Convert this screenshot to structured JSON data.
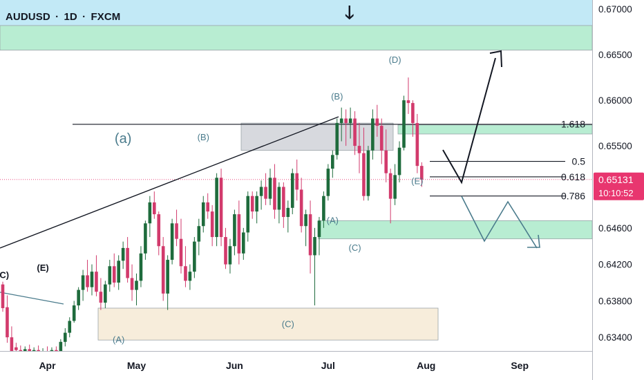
{
  "header": {
    "symbol": "AUDUSD",
    "timeframe": "1D",
    "exchange": "FXCM",
    "separator": "·"
  },
  "colors": {
    "bull": "#1e6b3c",
    "bear": "#d23a6c",
    "top_band": "#bfe8f5",
    "green_zone": "#b4ecd0",
    "gray_zone": "#c9ccd3",
    "beige_zone": "#f7ecd9",
    "wave_label": "#4a7b8c",
    "price_tag": "#e8366f",
    "axis_text": "#131722"
  },
  "chart_data": {
    "type": "candlestick",
    "title": "AUDUSD · 1D · FXCM",
    "xlabel": "",
    "ylabel": "",
    "ylim": [
      0.6325,
      0.671
    ],
    "y_ticks": [
      0.67,
      0.665,
      0.66,
      0.655,
      0.65131,
      0.646,
      0.642,
      0.638,
      0.634
    ],
    "y_tick_labels": [
      "0.67000",
      "0.66500",
      "0.66000",
      "0.65500",
      "0.64600",
      "0.64200",
      "0.63800",
      "0.63400"
    ],
    "x_tick_labels": [
      "Apr",
      "May",
      "Jun",
      "Jul",
      "Aug",
      "Sep"
    ],
    "x_tick_index": [
      10,
      30,
      52,
      73,
      95,
      116
    ],
    "last_price": "0.65131",
    "countdown": "10:10:52",
    "candles": [
      [
        0.6398,
        0.6401,
        0.6368,
        0.6372
      ],
      [
        0.6373,
        0.6386,
        0.6334,
        0.634
      ],
      [
        0.634,
        0.6352,
        0.6317,
        0.6322
      ],
      [
        0.6329,
        0.6334,
        0.6318,
        0.6326
      ],
      [
        0.6326,
        0.6331,
        0.6318,
        0.6324
      ],
      [
        0.6325,
        0.633,
        0.6318,
        0.6327
      ],
      [
        0.6327,
        0.6332,
        0.6318,
        0.6324
      ],
      [
        0.6324,
        0.6329,
        0.6318,
        0.6326
      ],
      [
        0.6326,
        0.6331,
        0.6318,
        0.6322
      ],
      [
        0.6322,
        0.6328,
        0.6318,
        0.6325
      ],
      [
        0.6325,
        0.633,
        0.6318,
        0.6323
      ],
      [
        0.6323,
        0.6329,
        0.6318,
        0.6326
      ],
      [
        0.6326,
        0.633,
        0.6318,
        0.6324
      ],
      [
        0.6325,
        0.6338,
        0.6318,
        0.6335
      ],
      [
        0.6335,
        0.635,
        0.633,
        0.6345
      ],
      [
        0.6345,
        0.6362,
        0.634,
        0.6358
      ],
      [
        0.6358,
        0.638,
        0.6356,
        0.6375
      ],
      [
        0.6375,
        0.6395,
        0.637,
        0.6392
      ],
      [
        0.6392,
        0.6414,
        0.638,
        0.6408
      ],
      [
        0.6408,
        0.6425,
        0.639,
        0.6395
      ],
      [
        0.6395,
        0.642,
        0.6386,
        0.6412
      ],
      [
        0.6412,
        0.643,
        0.6385,
        0.639
      ],
      [
        0.639,
        0.6405,
        0.637,
        0.6378
      ],
      [
        0.6378,
        0.6402,
        0.6372,
        0.6398
      ],
      [
        0.6398,
        0.6425,
        0.639,
        0.6418
      ],
      [
        0.6418,
        0.6432,
        0.6395,
        0.64
      ],
      [
        0.64,
        0.643,
        0.6392,
        0.6424
      ],
      [
        0.6424,
        0.6445,
        0.6415,
        0.6438
      ],
      [
        0.6438,
        0.645,
        0.64,
        0.6405
      ],
      [
        0.6405,
        0.642,
        0.638,
        0.6392
      ],
      [
        0.6392,
        0.641,
        0.6375,
        0.6402
      ],
      [
        0.6402,
        0.644,
        0.6395,
        0.6432
      ],
      [
        0.6432,
        0.6468,
        0.6425,
        0.6465
      ],
      [
        0.6465,
        0.6495,
        0.645,
        0.6488
      ],
      [
        0.6488,
        0.65,
        0.647,
        0.6475
      ],
      [
        0.6475,
        0.6478,
        0.643,
        0.644
      ],
      [
        0.644,
        0.645,
        0.638,
        0.6388
      ],
      [
        0.6388,
        0.643,
        0.637,
        0.6425
      ],
      [
        0.6425,
        0.647,
        0.642,
        0.6465
      ],
      [
        0.6465,
        0.648,
        0.644,
        0.6448
      ],
      [
        0.6448,
        0.647,
        0.641,
        0.6418
      ],
      [
        0.6418,
        0.644,
        0.6395,
        0.6402
      ],
      [
        0.6402,
        0.642,
        0.6392,
        0.6412
      ],
      [
        0.6412,
        0.645,
        0.6405,
        0.6445
      ],
      [
        0.6445,
        0.647,
        0.643,
        0.6462
      ],
      [
        0.6462,
        0.6495,
        0.6455,
        0.6488
      ],
      [
        0.6488,
        0.6498,
        0.647,
        0.6478
      ],
      [
        0.6478,
        0.6485,
        0.644,
        0.645
      ],
      [
        0.645,
        0.652,
        0.644,
        0.6515
      ],
      [
        0.6515,
        0.6525,
        0.644,
        0.645
      ],
      [
        0.645,
        0.646,
        0.6415,
        0.642
      ],
      [
        0.642,
        0.6448,
        0.641,
        0.644
      ],
      [
        0.644,
        0.648,
        0.643,
        0.6475
      ],
      [
        0.6475,
        0.649,
        0.642,
        0.6432
      ],
      [
        0.6432,
        0.646,
        0.6425,
        0.6455
      ],
      [
        0.6455,
        0.65,
        0.6445,
        0.6495
      ],
      [
        0.6495,
        0.65,
        0.647,
        0.6478
      ],
      [
        0.6478,
        0.65,
        0.6465,
        0.6495
      ],
      [
        0.6495,
        0.6512,
        0.648,
        0.6505
      ],
      [
        0.6505,
        0.652,
        0.6485,
        0.6492
      ],
      [
        0.6492,
        0.6525,
        0.6485,
        0.6515
      ],
      [
        0.6515,
        0.653,
        0.647,
        0.648
      ],
      [
        0.648,
        0.651,
        0.6465,
        0.6505
      ],
      [
        0.6505,
        0.651,
        0.646,
        0.6472
      ],
      [
        0.6472,
        0.649,
        0.6455,
        0.6482
      ],
      [
        0.6482,
        0.6525,
        0.6475,
        0.652
      ],
      [
        0.652,
        0.6535,
        0.649,
        0.6502
      ],
      [
        0.6502,
        0.6515,
        0.6455,
        0.6462
      ],
      [
        0.6462,
        0.648,
        0.644,
        0.6475
      ],
      [
        0.6475,
        0.649,
        0.641,
        0.643
      ],
      [
        0.643,
        0.646,
        0.6375,
        0.645
      ],
      [
        0.645,
        0.6472,
        0.643,
        0.6468
      ],
      [
        0.6468,
        0.65,
        0.646,
        0.6495
      ],
      [
        0.6495,
        0.653,
        0.649,
        0.6525
      ],
      [
        0.6525,
        0.6545,
        0.6515,
        0.654
      ],
      [
        0.654,
        0.658,
        0.6535,
        0.6575
      ],
      [
        0.6575,
        0.6592,
        0.6555,
        0.658
      ],
      [
        0.658,
        0.659,
        0.655,
        0.6575
      ],
      [
        0.6575,
        0.6592,
        0.6558,
        0.658
      ],
      [
        0.658,
        0.6588,
        0.654,
        0.655
      ],
      [
        0.655,
        0.6575,
        0.652,
        0.6542
      ],
      [
        0.6542,
        0.657,
        0.649,
        0.6495
      ],
      [
        0.6495,
        0.655,
        0.649,
        0.6545
      ],
      [
        0.6545,
        0.659,
        0.6535,
        0.658
      ],
      [
        0.658,
        0.6595,
        0.656,
        0.6572
      ],
      [
        0.6572,
        0.658,
        0.653,
        0.6545
      ],
      [
        0.6545,
        0.6568,
        0.651,
        0.652
      ],
      [
        0.652,
        0.6525,
        0.6465,
        0.6492
      ],
      [
        0.6492,
        0.653,
        0.6485,
        0.6518
      ],
      [
        0.6518,
        0.6555,
        0.651,
        0.6548
      ],
      [
        0.6548,
        0.6605,
        0.6545,
        0.66
      ],
      [
        0.66,
        0.6625,
        0.6585,
        0.6597
      ],
      [
        0.6597,
        0.66,
        0.656,
        0.6575
      ],
      [
        0.6575,
        0.6585,
        0.652,
        0.6528
      ],
      [
        0.6528,
        0.6532,
        0.6505,
        0.6513
      ]
    ]
  },
  "zones": [
    {
      "name": "top-band",
      "top": 0.671,
      "bottom": 0.6682,
      "color": "top_band"
    },
    {
      "name": "green-zone-top",
      "top": 0.6682,
      "bottom": 0.6655,
      "color": "green_zone"
    },
    {
      "name": "gray-zone-b",
      "top": 0.6575,
      "bottom": 0.6545,
      "color": "gray_zone"
    },
    {
      "name": "green-zone-fib",
      "top": 0.6573,
      "bottom": 0.6563,
      "color": "green_zone"
    },
    {
      "name": "green-zone-a",
      "top": 0.6468,
      "bottom": 0.6448,
      "color": "green_zone"
    },
    {
      "name": "beige-zone",
      "top": 0.6372,
      "bottom": 0.6337,
      "color": "beige_zone"
    }
  ],
  "fib_levels": [
    {
      "label": "1.618",
      "price": 0.6574
    },
    {
      "label": "0.5",
      "price": 0.6533
    },
    {
      "label": "0.618",
      "price": 0.6516
    },
    {
      "label": "0.786",
      "price": 0.6495
    }
  ],
  "wave_labels": [
    {
      "text": "(a)",
      "i": 27,
      "price": 0.6553,
      "size": 20
    },
    {
      "text": "(B)",
      "i": 45,
      "price": 0.6556,
      "size": 13
    },
    {
      "text": "(B)",
      "i": 75,
      "price": 0.6601,
      "size": 13
    },
    {
      "text": "(D)",
      "i": 88,
      "price": 0.6641,
      "size": 13
    },
    {
      "text": "(E)",
      "i": 93,
      "price": 0.6508,
      "size": 13
    },
    {
      "text": "(A)",
      "i": 74,
      "price": 0.6465,
      "size": 13
    },
    {
      "text": "(C)",
      "i": 79,
      "price": 0.6435,
      "size": 13
    },
    {
      "text": "(C)",
      "i": 64,
      "price": 0.6351,
      "size": 13
    },
    {
      "text": "(A)",
      "i": 26,
      "price": 0.6334,
      "size": 13
    },
    {
      "text": "(C)",
      "i": 0,
      "price": 0.6405,
      "size": 13,
      "dark": true
    },
    {
      "text": "(E)",
      "i": 9,
      "price": 0.6413,
      "size": 13,
      "dark": true
    }
  ]
}
